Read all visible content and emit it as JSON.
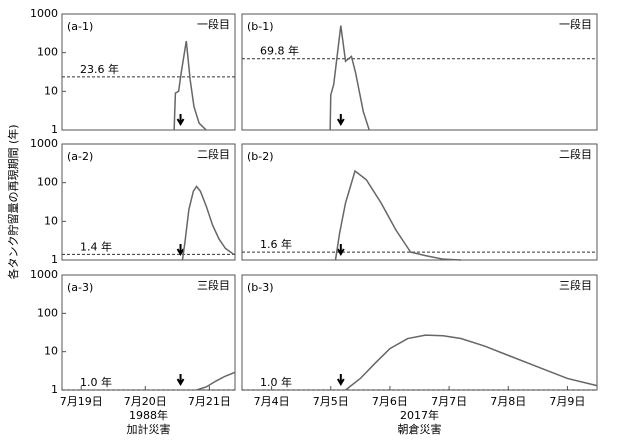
{
  "ylabel": "各タンク貯留量の再現期間 (年)",
  "chart_data": [
    {
      "type": "line",
      "title": "(a-1)",
      "subtitle": "一段目",
      "xlim": [
        18.7,
        21.4
      ],
      "ylim": [
        1,
        1000
      ],
      "log_y": true,
      "yticks": [
        1,
        10,
        100,
        1000
      ],
      "threshold": {
        "value": 23.6,
        "label": "23.6 年"
      },
      "arrow_x": 20.55,
      "x": [
        20.45,
        20.47,
        20.52,
        20.56,
        20.64,
        20.7,
        20.76,
        20.84,
        20.95
      ],
      "series": [
        {
          "color": "#666666",
          "values": [
            1,
            9,
            10,
            30,
            200,
            20,
            4,
            1.5,
            1
          ]
        }
      ]
    },
    {
      "type": "line",
      "title": "(b-1)",
      "subtitle": "一段目",
      "xlim": [
        3.5,
        9.5
      ],
      "ylim": [
        1,
        1000
      ],
      "log_y": true,
      "threshold": {
        "value": 69.8,
        "label": "69.8 年"
      },
      "arrow_x": 5.17,
      "x": [
        4.99,
        5.0,
        5.05,
        5.17,
        5.25,
        5.35,
        5.42,
        5.55,
        5.65
      ],
      "series": [
        {
          "color": "#666666",
          "values": [
            1,
            8,
            15,
            500,
            60,
            80,
            30,
            3,
            1
          ]
        }
      ]
    },
    {
      "type": "line",
      "title": "(a-2)",
      "subtitle": "二段目",
      "xlim": [
        18.7,
        21.4
      ],
      "ylim": [
        1,
        1000
      ],
      "log_y": true,
      "yticks": [
        1,
        10,
        100,
        1000
      ],
      "threshold": {
        "value": 1.4,
        "label": "1.4 年"
      },
      "arrow_x": 20.55,
      "x": [
        20.58,
        20.62,
        20.68,
        20.75,
        20.8,
        20.86,
        20.95,
        21.05,
        21.15,
        21.25,
        21.38
      ],
      "series": [
        {
          "color": "#666666",
          "values": [
            1,
            3,
            20,
            60,
            80,
            60,
            25,
            8,
            3.5,
            2,
            1.4
          ]
        }
      ]
    },
    {
      "type": "line",
      "title": "(b-2)",
      "subtitle": "二段目",
      "xlim": [
        3.5,
        9.5
      ],
      "ylim": [
        1,
        1000
      ],
      "log_y": true,
      "threshold": {
        "value": 1.6,
        "label": "1.6 年"
      },
      "arrow_x": 5.17,
      "x": [
        5.08,
        5.15,
        5.25,
        5.41,
        5.6,
        5.85,
        6.1,
        6.35,
        6.6,
        6.9,
        7.2
      ],
      "series": [
        {
          "color": "#666666",
          "values": [
            1,
            5,
            30,
            200,
            120,
            30,
            6,
            1.6,
            1.3,
            1.05,
            1
          ]
        }
      ]
    },
    {
      "type": "line",
      "title": "(a-3)",
      "subtitle": "三段目",
      "xlim": [
        18.7,
        21.4
      ],
      "ylim": [
        1,
        1000
      ],
      "log_y": true,
      "yticks": [
        1,
        10,
        100,
        1000
      ],
      "threshold": {
        "value": 1.0,
        "label": "1.0 年"
      },
      "arrow_x": 20.55,
      "xticks": [
        {
          "value": 19,
          "label": "7月19日"
        },
        {
          "value": 20,
          "label": "7月20日"
        },
        {
          "value": 21,
          "label": "7月21日"
        }
      ],
      "xlabel": [
        "1988年",
        "加計災害"
      ],
      "x": [
        20.8,
        20.95,
        21.1,
        21.25,
        21.4
      ],
      "series": [
        {
          "color": "#666666",
          "values": [
            1,
            1.2,
            1.7,
            2.3,
            2.9
          ]
        }
      ]
    },
    {
      "type": "line",
      "title": "(b-3)",
      "subtitle": "三段目",
      "xlim": [
        3.5,
        9.5
      ],
      "ylim": [
        1,
        1000
      ],
      "log_y": true,
      "threshold": {
        "value": 1.0,
        "label": "1.0 年"
      },
      "arrow_x": 5.17,
      "xticks": [
        {
          "value": 4,
          "label": "7月4日"
        },
        {
          "value": 5,
          "label": "7月5日"
        },
        {
          "value": 6,
          "label": "7月6日"
        },
        {
          "value": 7,
          "label": "7月7日"
        },
        {
          "value": 8,
          "label": "7月8日"
        },
        {
          "value": 9,
          "label": "7月9日"
        }
      ],
      "xlabel": [
        "2017年",
        "朝倉災害"
      ],
      "x": [
        5.25,
        5.5,
        5.75,
        6.0,
        6.3,
        6.6,
        6.9,
        7.2,
        7.6,
        8.0,
        8.5,
        9.0,
        9.5
      ],
      "series": [
        {
          "color": "#666666",
          "values": [
            1,
            2,
            5,
            12,
            22,
            27,
            26,
            22,
            14,
            8,
            4,
            2,
            1.3
          ]
        }
      ]
    }
  ]
}
